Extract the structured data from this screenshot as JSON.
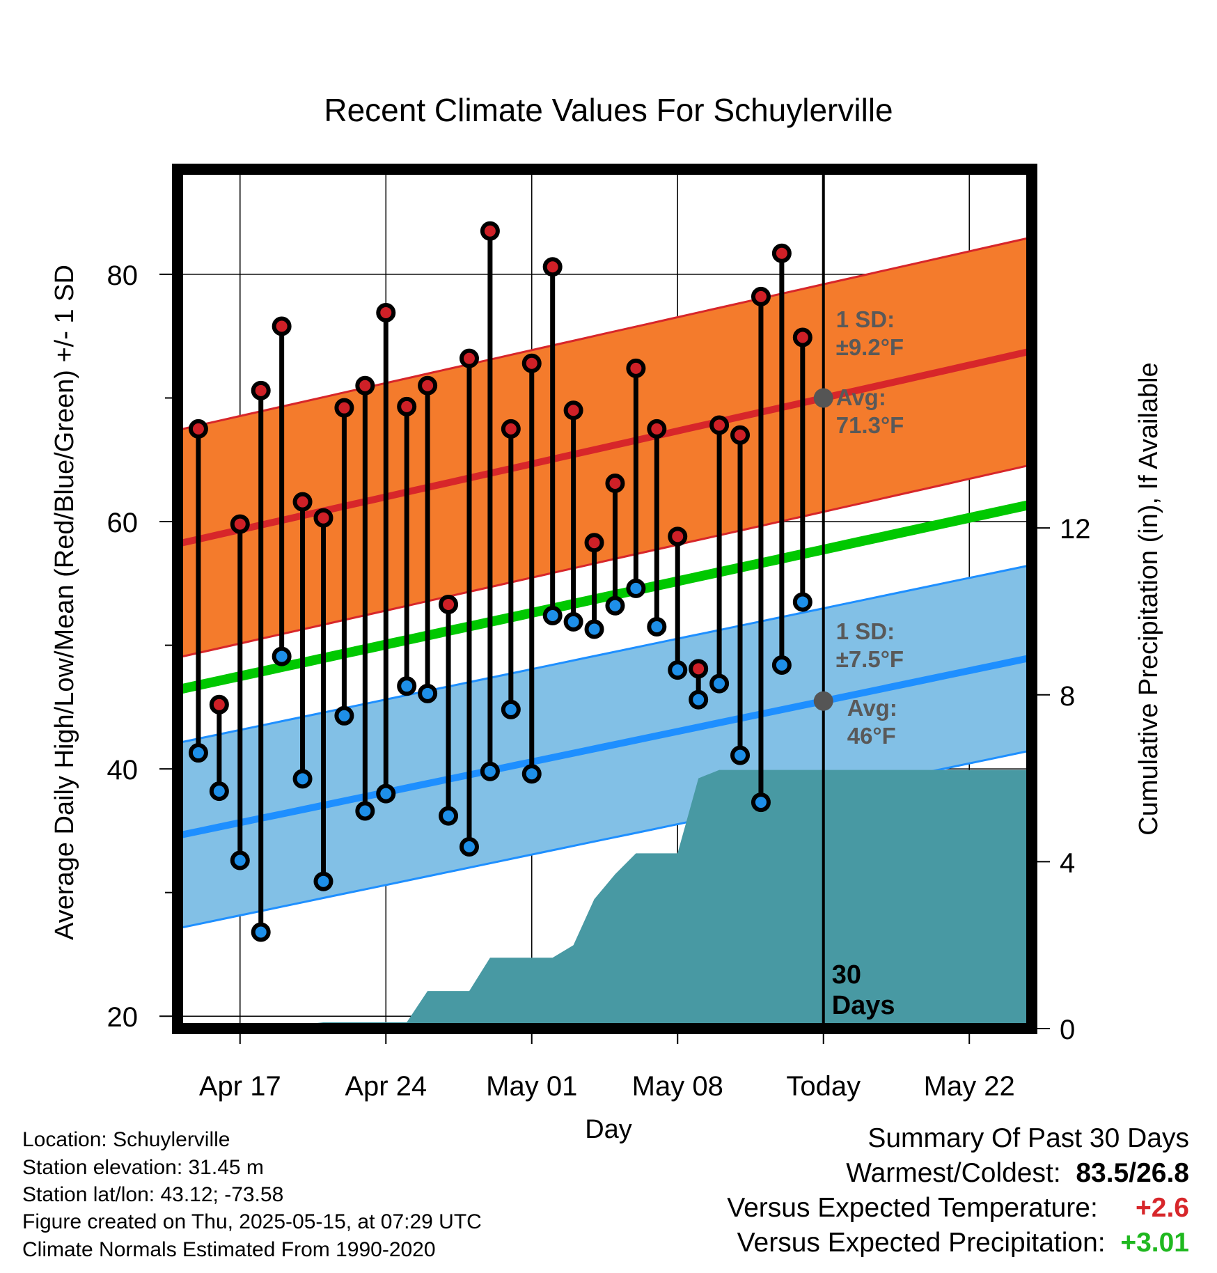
{
  "chart_data": {
    "type": "line",
    "title": "Recent Climate Values For Schuylerville",
    "xlabel": "Day",
    "ylabel_left": "Average Daily High/Low/Mean (Red/Blue/Green) +/- 1 SD",
    "ylabel_right": "Cumulative Precipitation (in), If Available",
    "xlim": [
      0,
      41
    ],
    "ylim_left": [
      19.0,
      88.5
    ],
    "ylim_right": [
      0,
      20.6
    ],
    "x_ticks": [
      {
        "x": 3,
        "label": "Apr 17"
      },
      {
        "x": 10,
        "label": "Apr 24"
      },
      {
        "x": 17,
        "label": "May 01"
      },
      {
        "x": 24,
        "label": "May 08"
      },
      {
        "x": 31,
        "label": "Today"
      },
      {
        "x": 38,
        "label": "May 22"
      }
    ],
    "y_ticks_left": [
      20,
      40,
      60,
      80
    ],
    "y_ticks_right": [
      0,
      4,
      8,
      12
    ],
    "grid": true,
    "today_x": 31,
    "days": [
      1,
      2,
      3,
      4,
      5,
      6,
      7,
      8,
      9,
      10,
      11,
      12,
      13,
      14,
      15,
      16,
      17,
      18,
      19,
      20,
      21,
      22,
      23,
      24,
      25,
      26,
      27,
      28,
      29,
      30
    ],
    "highs": [
      67.5,
      45.2,
      59.8,
      70.6,
      75.8,
      61.6,
      60.3,
      69.2,
      71.0,
      76.9,
      69.3,
      71.0,
      53.3,
      73.2,
      83.5,
      67.5,
      72.8,
      80.6,
      69.0,
      58.3,
      63.1,
      72.4,
      67.5,
      58.8,
      48.1,
      67.8,
      67.0,
      78.2,
      81.7,
      74.9
    ],
    "lows": [
      41.3,
      38.2,
      32.6,
      26.8,
      49.1,
      39.2,
      30.9,
      44.3,
      36.6,
      38.0,
      46.7,
      46.1,
      36.2,
      33.7,
      39.8,
      44.8,
      39.6,
      52.4,
      51.9,
      51.3,
      53.2,
      54.6,
      51.5,
      48.0,
      45.6,
      46.9,
      41.1,
      37.3,
      48.4,
      53.5
    ],
    "normal_high_start": 58.2,
    "normal_high_end": 73.8,
    "normal_low_start": 34.6,
    "normal_low_end": 49.0,
    "normal_mean_start": 46.4,
    "normal_mean_end": 61.4,
    "sd_high": 9.2,
    "sd_low": 7.5,
    "precip_series": [
      {
        "x": 0,
        "y": 0.0
      },
      {
        "x": 4,
        "y": 0.0
      },
      {
        "x": 5,
        "y": 0.05
      },
      {
        "x": 7,
        "y": 0.15
      },
      {
        "x": 11,
        "y": 0.15
      },
      {
        "x": 12,
        "y": 0.9
      },
      {
        "x": 14,
        "y": 0.9
      },
      {
        "x": 15,
        "y": 1.7
      },
      {
        "x": 18,
        "y": 1.7
      },
      {
        "x": 19,
        "y": 2.0
      },
      {
        "x": 20,
        "y": 3.1
      },
      {
        "x": 21,
        "y": 3.7
      },
      {
        "x": 22,
        "y": 4.2
      },
      {
        "x": 24,
        "y": 4.2
      },
      {
        "x": 25,
        "y": 6.0
      },
      {
        "x": 26,
        "y": 6.2
      },
      {
        "x": 41,
        "y": 6.2
      }
    ],
    "colors": {
      "high_band": "#f47b2c",
      "high_line": "#d7262a",
      "low_band": "#82c0e6",
      "low_line": "#1e8fff",
      "mean_line": "#00c800",
      "precip": "#4899a3",
      "high_dot": "#cf2027",
      "low_dot": "#1e8fe8"
    },
    "annotations": {
      "high_sd_line1": "1 SD:",
      "high_sd_line2": "±9.2°F",
      "high_avg_line1": "Avg:",
      "high_avg_line2": "71.3°F",
      "low_sd_line1": "1 SD:",
      "low_sd_line2": "±7.5°F",
      "low_avg_line1": "Avg:",
      "low_avg_line2": "46°F",
      "days_line1": "30",
      "days_line2": "Days"
    }
  },
  "meta": {
    "location": "Location: Schuylerville",
    "elevation": "Station elevation: 31.45 m",
    "latlon": "Station lat/lon: 43.12; -73.58",
    "created": "Figure created on Thu, 2025-05-15, at 07:29 UTC",
    "normals": "Climate Normals Estimated From 1990-2020"
  },
  "summary": {
    "heading": "Summary Of Past 30 Days",
    "warm_cold_label": "Warmest/Coldest:",
    "warm_cold_value": "83.5/26.8",
    "temp_label": "Versus Expected Temperature:",
    "temp_value": "+2.6",
    "precip_label": "Versus Expected Precipitation:",
    "precip_value": "+3.01",
    "temp_color": "#d7262a",
    "precip_color": "#1fb81f"
  }
}
